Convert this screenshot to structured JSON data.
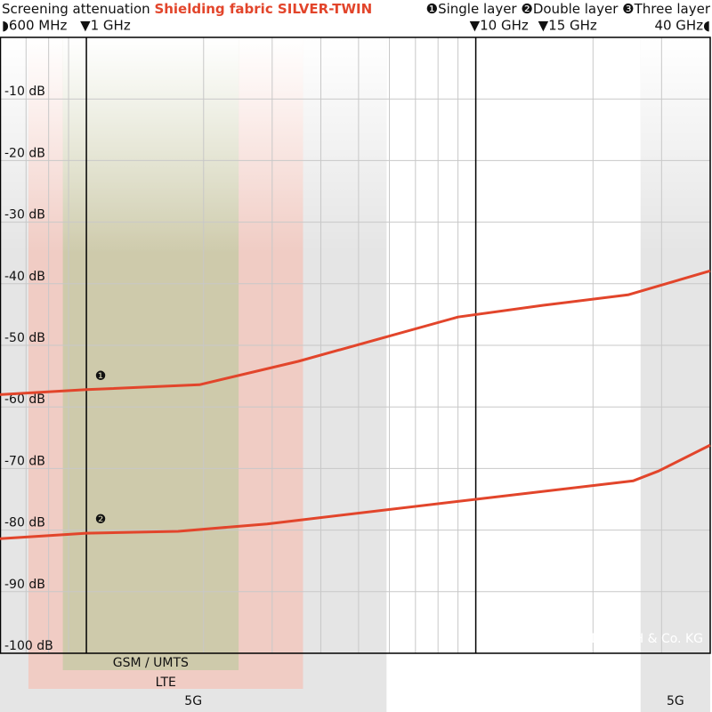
{
  "chart_data": {
    "type": "line",
    "title": "Screening attenuation",
    "subtitle": "Shielding fabric SILVER-TWIN",
    "copyright": "© YSHIELD GmbH & Co. KG",
    "xlog": true,
    "xlim": [
      0.6,
      40
    ],
    "ylim": [
      -100,
      0
    ],
    "xticks": [
      {
        "value": 0.6,
        "label": "◗600 MHz"
      },
      {
        "value": 1,
        "label": "▼1 GHz"
      },
      {
        "value": 10,
        "label": "▼10 GHz"
      },
      {
        "value": 15,
        "label": "▼15 GHz"
      },
      {
        "value": 40,
        "label": "40 GHz◖"
      }
    ],
    "major_lines": [
      1,
      10
    ],
    "xgrid": [
      0.7,
      0.8,
      0.9,
      2,
      3,
      4,
      5,
      6,
      7,
      8,
      9,
      20,
      30
    ],
    "yticks": [
      {
        "value": -10,
        "label": "-10 dB"
      },
      {
        "value": -20,
        "label": "-20 dB"
      },
      {
        "value": -30,
        "label": "-30 dB"
      },
      {
        "value": -40,
        "label": "-40 dB"
      },
      {
        "value": -50,
        "label": "-50 dB"
      },
      {
        "value": -60,
        "label": "-60 dB"
      },
      {
        "value": -70,
        "label": "-70 dB"
      },
      {
        "value": -80,
        "label": "-80 dB"
      },
      {
        "value": -90,
        "label": "-90 dB"
      },
      {
        "value": -100,
        "label": "-100 dB"
      }
    ],
    "grid": true,
    "legend": [
      {
        "marker": "❶",
        "name": "Single layer"
      },
      {
        "marker": "❷",
        "name": "Double layer"
      },
      {
        "marker": "❸",
        "name": "Three layer"
      }
    ],
    "bands": [
      {
        "label": "5G",
        "range": [
          0.6,
          5.9
        ],
        "color": "#dcdcdc"
      },
      {
        "label": "5G",
        "range": [
          26.5,
          40
        ],
        "color": "#dcdcdc"
      },
      {
        "label": "LTE",
        "range": [
          0.71,
          3.6
        ],
        "color": "#f3c3b8"
      },
      {
        "label": "GSM / UMTS",
        "range": [
          0.87,
          2.46
        ],
        "color": "#c3caa3"
      }
    ],
    "series": [
      {
        "name": "Single layer",
        "label": "❶",
        "color": "#e2452b",
        "x": [
          0.6,
          1,
          1.95,
          3.5,
          9,
          14.9,
          24.6,
          40
        ],
        "values": [
          -58,
          -57.2,
          -56.4,
          -52.6,
          -45.4,
          -43.5,
          -41.8,
          -37.9
        ]
      },
      {
        "name": "Double layer",
        "label": "❷",
        "color": "#e2452b",
        "x": [
          0.6,
          1,
          1.72,
          2.91,
          10,
          25.4,
          29.5,
          40
        ],
        "values": [
          -81.4,
          -80.5,
          -80.2,
          -79,
          -75,
          -72,
          -70.4,
          -66.2
        ]
      }
    ]
  }
}
